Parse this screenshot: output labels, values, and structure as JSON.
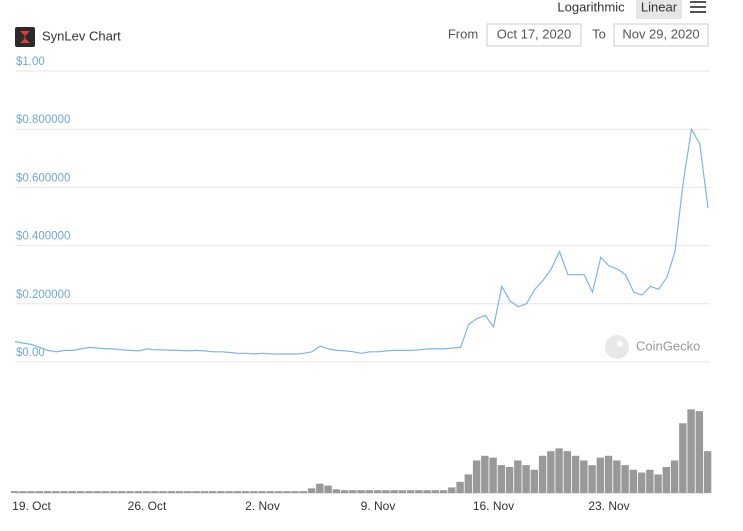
{
  "controls": {
    "log_button": "Logarithmic",
    "linear_button": "Linear",
    "from_label": "From",
    "from_date": "Oct 17, 2020",
    "to_label": "To",
    "to_date": "Nov 29, 2020",
    "watermark": "CoinGecko"
  },
  "chart_data": [
    {
      "type": "line",
      "title": "SynLev Chart",
      "color": "#7cb5ec",
      "grid": true,
      "x": [
        null,
        null,
        "19. Oct",
        null,
        null,
        null,
        null,
        null,
        null,
        null,
        null,
        null,
        null,
        null,
        null,
        null,
        "26. Oct",
        null,
        null,
        null,
        null,
        null,
        null,
        null,
        null,
        null,
        null,
        null,
        null,
        null,
        "2. Nov",
        null,
        null,
        null,
        null,
        null,
        null,
        null,
        null,
        null,
        null,
        null,
        null,
        null,
        "9. Nov",
        null,
        null,
        null,
        null,
        null,
        null,
        null,
        null,
        null,
        null,
        null,
        null,
        null,
        "16. Nov",
        null,
        null,
        null,
        null,
        null,
        null,
        null,
        null,
        null,
        null,
        null,
        null,
        null,
        "23. Nov",
        null,
        null,
        null,
        null,
        null,
        null,
        null,
        null,
        null,
        null,
        null,
        null
      ],
      "values": [
        0.07,
        0.065,
        0.06,
        0.05,
        0.04,
        0.035,
        0.04,
        0.04,
        0.045,
        0.05,
        0.048,
        0.045,
        0.045,
        0.042,
        0.04,
        0.038,
        0.045,
        0.042,
        0.042,
        0.04,
        0.04,
        0.038,
        0.04,
        0.038,
        0.035,
        0.035,
        0.033,
        0.03,
        0.03,
        0.028,
        0.03,
        0.028,
        0.027,
        0.028,
        0.027,
        0.03,
        0.035,
        0.055,
        0.045,
        0.04,
        0.038,
        0.035,
        0.03,
        0.035,
        0.035,
        0.038,
        0.04,
        0.04,
        0.04,
        0.042,
        0.045,
        0.045,
        0.045,
        0.048,
        0.05,
        0.13,
        0.15,
        0.16,
        0.12,
        0.26,
        0.21,
        0.19,
        0.2,
        0.25,
        0.28,
        0.32,
        0.38,
        0.3,
        0.3,
        0.3,
        0.24,
        0.36,
        0.33,
        0.32,
        0.3,
        0.24,
        0.23,
        0.26,
        0.25,
        0.29,
        0.38,
        0.62,
        0.8,
        0.75,
        0.53
      ],
      "ylim": [
        0,
        1
      ],
      "yticks": [
        {
          "value": 0,
          "label": "$0.00"
        },
        {
          "value": 0.2,
          "label": "$0.200000"
        },
        {
          "value": 0.4,
          "label": "$0.400000"
        },
        {
          "value": 0.6,
          "label": "$0.600000"
        },
        {
          "value": 0.8,
          "label": "$0.800000"
        },
        {
          "value": 1,
          "label": "$1.00"
        }
      ]
    },
    {
      "type": "bar",
      "color": "#999999",
      "ylim": [
        0,
        100
      ],
      "values": [
        2,
        2,
        2,
        2,
        2,
        2,
        2,
        2,
        2,
        2,
        2,
        2,
        2,
        2,
        2,
        2,
        2,
        2,
        2,
        2,
        2,
        2,
        2,
        2,
        2,
        2,
        2,
        2,
        2,
        2,
        2,
        2,
        2,
        2,
        2,
        2,
        5,
        10,
        8,
        4,
        3,
        3,
        3,
        3,
        3,
        3,
        3,
        3,
        3,
        3,
        3,
        3,
        3,
        6,
        12,
        20,
        35,
        40,
        38,
        30,
        28,
        35,
        30,
        25,
        40,
        45,
        48,
        45,
        40,
        35,
        30,
        38,
        40,
        35,
        30,
        25,
        22,
        25,
        20,
        28,
        35,
        75,
        90,
        88,
        45
      ]
    }
  ]
}
